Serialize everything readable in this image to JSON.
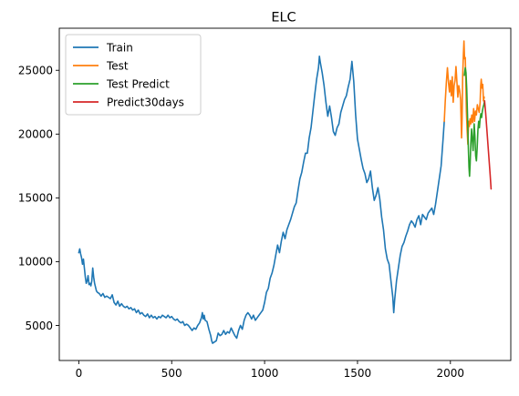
{
  "chart_data": {
    "type": "line",
    "title": "ELC",
    "xlabel": "",
    "ylabel": "",
    "xlim": [
      -105,
      2325
    ],
    "ylim": [
      2250,
      28300
    ],
    "xticks": [
      0,
      500,
      1000,
      1500,
      2000
    ],
    "yticks": [
      5000,
      10000,
      15000,
      20000,
      25000
    ],
    "grid": false,
    "legend_position": "top-left",
    "series": [
      {
        "name": "Train",
        "color": "#1f77b4",
        "points": [
          [
            0,
            10700
          ],
          [
            5,
            11000
          ],
          [
            10,
            10600
          ],
          [
            15,
            10300
          ],
          [
            20,
            9800
          ],
          [
            25,
            10200
          ],
          [
            30,
            9500
          ],
          [
            35,
            8800
          ],
          [
            40,
            8300
          ],
          [
            45,
            8500
          ],
          [
            50,
            8900
          ],
          [
            55,
            8200
          ],
          [
            60,
            8300
          ],
          [
            65,
            8100
          ],
          [
            70,
            8500
          ],
          [
            75,
            9500
          ],
          [
            80,
            8800
          ],
          [
            85,
            8300
          ],
          [
            90,
            8000
          ],
          [
            95,
            7700
          ],
          [
            100,
            7600
          ],
          [
            110,
            7500
          ],
          [
            120,
            7300
          ],
          [
            130,
            7500
          ],
          [
            140,
            7200
          ],
          [
            150,
            7300
          ],
          [
            160,
            7200
          ],
          [
            170,
            7100
          ],
          [
            180,
            7400
          ],
          [
            190,
            6800
          ],
          [
            200,
            6600
          ],
          [
            210,
            6900
          ],
          [
            220,
            6500
          ],
          [
            230,
            6700
          ],
          [
            240,
            6500
          ],
          [
            250,
            6400
          ],
          [
            260,
            6500
          ],
          [
            270,
            6300
          ],
          [
            280,
            6400
          ],
          [
            290,
            6200
          ],
          [
            300,
            6300
          ],
          [
            310,
            6000
          ],
          [
            320,
            6200
          ],
          [
            330,
            5900
          ],
          [
            340,
            6000
          ],
          [
            350,
            5800
          ],
          [
            360,
            5700
          ],
          [
            370,
            5900
          ],
          [
            380,
            5600
          ],
          [
            390,
            5800
          ],
          [
            400,
            5600
          ],
          [
            410,
            5700
          ],
          [
            420,
            5500
          ],
          [
            430,
            5700
          ],
          [
            440,
            5600
          ],
          [
            450,
            5800
          ],
          [
            460,
            5700
          ],
          [
            470,
            5600
          ],
          [
            480,
            5800
          ],
          [
            490,
            5600
          ],
          [
            500,
            5700
          ],
          [
            510,
            5500
          ],
          [
            520,
            5400
          ],
          [
            530,
            5500
          ],
          [
            540,
            5300
          ],
          [
            550,
            5200
          ],
          [
            560,
            5300
          ],
          [
            570,
            5000
          ],
          [
            580,
            5100
          ],
          [
            590,
            5000
          ],
          [
            600,
            4800
          ],
          [
            610,
            4600
          ],
          [
            620,
            4800
          ],
          [
            630,
            4700
          ],
          [
            640,
            5000
          ],
          [
            650,
            5200
          ],
          [
            660,
            5600
          ],
          [
            665,
            6000
          ],
          [
            670,
            5500
          ],
          [
            675,
            5800
          ],
          [
            680,
            5400
          ],
          [
            690,
            5300
          ],
          [
            700,
            4700
          ],
          [
            710,
            4200
          ],
          [
            715,
            3800
          ],
          [
            720,
            3600
          ],
          [
            730,
            3700
          ],
          [
            740,
            3800
          ],
          [
            750,
            4400
          ],
          [
            760,
            4200
          ],
          [
            770,
            4300
          ],
          [
            780,
            4600
          ],
          [
            790,
            4300
          ],
          [
            800,
            4500
          ],
          [
            810,
            4400
          ],
          [
            820,
            4800
          ],
          [
            830,
            4500
          ],
          [
            840,
            4200
          ],
          [
            850,
            4000
          ],
          [
            860,
            4600
          ],
          [
            870,
            5000
          ],
          [
            880,
            4700
          ],
          [
            890,
            5400
          ],
          [
            900,
            5800
          ],
          [
            910,
            6000
          ],
          [
            920,
            5800
          ],
          [
            930,
            5500
          ],
          [
            940,
            5800
          ],
          [
            950,
            5400
          ],
          [
            960,
            5600
          ],
          [
            970,
            5800
          ],
          [
            980,
            6000
          ],
          [
            990,
            6200
          ],
          [
            1000,
            6800
          ],
          [
            1010,
            7600
          ],
          [
            1020,
            7900
          ],
          [
            1030,
            8700
          ],
          [
            1040,
            9100
          ],
          [
            1050,
            9700
          ],
          [
            1060,
            10500
          ],
          [
            1070,
            11300
          ],
          [
            1080,
            10700
          ],
          [
            1090,
            11600
          ],
          [
            1100,
            12300
          ],
          [
            1110,
            11800
          ],
          [
            1120,
            12500
          ],
          [
            1130,
            12900
          ],
          [
            1140,
            13300
          ],
          [
            1150,
            13800
          ],
          [
            1160,
            14300
          ],
          [
            1170,
            14600
          ],
          [
            1180,
            15600
          ],
          [
            1190,
            16500
          ],
          [
            1200,
            17000
          ],
          [
            1210,
            17800
          ],
          [
            1220,
            18500
          ],
          [
            1230,
            18500
          ],
          [
            1240,
            19700
          ],
          [
            1250,
            20500
          ],
          [
            1260,
            21800
          ],
          [
            1270,
            23100
          ],
          [
            1280,
            24300
          ],
          [
            1290,
            25200
          ],
          [
            1295,
            26100
          ],
          [
            1300,
            25600
          ],
          [
            1310,
            24800
          ],
          [
            1320,
            23800
          ],
          [
            1330,
            22500
          ],
          [
            1340,
            21400
          ],
          [
            1350,
            22200
          ],
          [
            1360,
            21300
          ],
          [
            1370,
            20200
          ],
          [
            1380,
            19900
          ],
          [
            1390,
            20500
          ],
          [
            1400,
            20800
          ],
          [
            1410,
            21700
          ],
          [
            1420,
            22200
          ],
          [
            1430,
            22700
          ],
          [
            1440,
            23000
          ],
          [
            1450,
            23700
          ],
          [
            1460,
            24300
          ],
          [
            1470,
            25700
          ],
          [
            1480,
            24100
          ],
          [
            1490,
            21500
          ],
          [
            1500,
            19600
          ],
          [
            1510,
            18800
          ],
          [
            1520,
            18000
          ],
          [
            1530,
            17300
          ],
          [
            1540,
            16900
          ],
          [
            1550,
            16200
          ],
          [
            1560,
            16500
          ],
          [
            1570,
            17100
          ],
          [
            1580,
            15800
          ],
          [
            1590,
            14800
          ],
          [
            1600,
            15200
          ],
          [
            1610,
            15800
          ],
          [
            1620,
            14900
          ],
          [
            1630,
            13500
          ],
          [
            1640,
            12500
          ],
          [
            1650,
            11000
          ],
          [
            1660,
            10200
          ],
          [
            1670,
            9800
          ],
          [
            1680,
            8500
          ],
          [
            1690,
            7200
          ],
          [
            1695,
            6000
          ],
          [
            1700,
            7000
          ],
          [
            1710,
            8500
          ],
          [
            1720,
            9500
          ],
          [
            1730,
            10500
          ],
          [
            1740,
            11200
          ],
          [
            1750,
            11500
          ],
          [
            1760,
            12000
          ],
          [
            1770,
            12400
          ],
          [
            1780,
            12900
          ],
          [
            1790,
            13200
          ],
          [
            1800,
            13000
          ],
          [
            1810,
            12700
          ],
          [
            1820,
            13300
          ],
          [
            1830,
            13600
          ],
          [
            1840,
            12900
          ],
          [
            1850,
            13700
          ],
          [
            1860,
            13500
          ],
          [
            1870,
            13300
          ],
          [
            1880,
            13800
          ],
          [
            1890,
            14000
          ],
          [
            1900,
            14200
          ],
          [
            1910,
            13700
          ],
          [
            1920,
            14500
          ],
          [
            1930,
            15500
          ],
          [
            1940,
            16500
          ],
          [
            1950,
            17500
          ],
          [
            1960,
            19500
          ],
          [
            1967,
            21000
          ]
        ]
      },
      {
        "name": "Test",
        "color": "#ff7f0e",
        "points": [
          [
            1967,
            21000
          ],
          [
            1972,
            22500
          ],
          [
            1978,
            24000
          ],
          [
            1984,
            25200
          ],
          [
            1990,
            24000
          ],
          [
            1995,
            23300
          ],
          [
            2000,
            24200
          ],
          [
            2005,
            23000
          ],
          [
            2010,
            24500
          ],
          [
            2015,
            22500
          ],
          [
            2020,
            23800
          ],
          [
            2025,
            24200
          ],
          [
            2030,
            25300
          ],
          [
            2035,
            24100
          ],
          [
            2040,
            22900
          ],
          [
            2045,
            23800
          ],
          [
            2050,
            23400
          ],
          [
            2055,
            22700
          ],
          [
            2060,
            19700
          ],
          [
            2063,
            21200
          ],
          [
            2066,
            24500
          ],
          [
            2070,
            26300
          ],
          [
            2073,
            27300
          ],
          [
            2076,
            25900
          ],
          [
            2080,
            26000
          ],
          [
            2083,
            24200
          ],
          [
            2086,
            21800
          ],
          [
            2090,
            20300
          ],
          [
            2094,
            19200
          ],
          [
            2098,
            21000
          ],
          [
            2102,
            20600
          ],
          [
            2106,
            21200
          ],
          [
            2110,
            20800
          ],
          [
            2115,
            21500
          ],
          [
            2120,
            20900
          ],
          [
            2125,
            22000
          ],
          [
            2130,
            21000
          ],
          [
            2135,
            21800
          ],
          [
            2140,
            21500
          ],
          [
            2145,
            22300
          ],
          [
            2150,
            22000
          ],
          [
            2155,
            21700
          ],
          [
            2160,
            22500
          ],
          [
            2163,
            23800
          ],
          [
            2166,
            24300
          ],
          [
            2170,
            23600
          ],
          [
            2174,
            23900
          ],
          [
            2178,
            22600
          ],
          [
            2182,
            22900
          ]
        ]
      },
      {
        "name": "Test Predict",
        "color": "#2ca02c",
        "points": [
          [
            2075,
            24600
          ],
          [
            2080,
            25200
          ],
          [
            2084,
            24800
          ],
          [
            2088,
            23500
          ],
          [
            2092,
            21500
          ],
          [
            2096,
            19200
          ],
          [
            2100,
            17400
          ],
          [
            2103,
            16700
          ],
          [
            2106,
            17600
          ],
          [
            2110,
            19300
          ],
          [
            2114,
            20400
          ],
          [
            2118,
            19600
          ],
          [
            2122,
            18700
          ],
          [
            2125,
            19700
          ],
          [
            2128,
            20800
          ],
          [
            2132,
            19800
          ],
          [
            2136,
            18300
          ],
          [
            2140,
            17900
          ],
          [
            2144,
            18900
          ],
          [
            2148,
            20300
          ],
          [
            2152,
            21000
          ],
          [
            2156,
            20500
          ],
          [
            2160,
            21200
          ],
          [
            2164,
            21600
          ],
          [
            2168,
            21300
          ],
          [
            2172,
            21800
          ],
          [
            2176,
            22100
          ],
          [
            2180,
            22300
          ],
          [
            2184,
            22600
          ]
        ]
      },
      {
        "name": "Predict30days",
        "color": "#d62728",
        "points": [
          [
            2184,
            22600
          ],
          [
            2190,
            21600
          ],
          [
            2196,
            20400
          ],
          [
            2202,
            19200
          ],
          [
            2208,
            18000
          ],
          [
            2214,
            16800
          ],
          [
            2219,
            15700
          ]
        ]
      }
    ]
  }
}
